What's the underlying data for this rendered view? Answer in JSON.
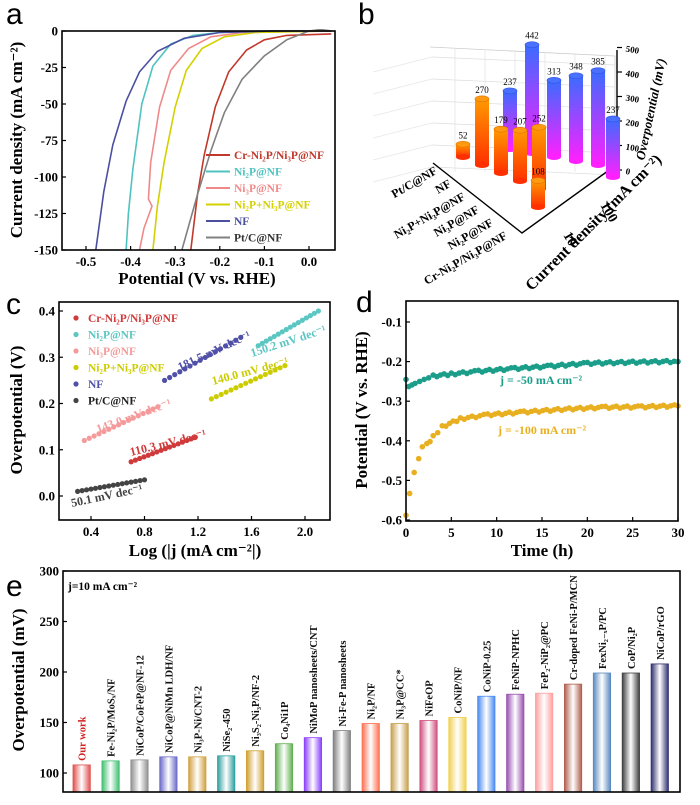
{
  "panels": {
    "a": "a",
    "b": "b",
    "c": "c",
    "d": "d",
    "e": "e"
  },
  "chart_data": [
    {
      "id": "a",
      "type": "line",
      "title": "",
      "xlabel": "Potential (V vs. RHE)",
      "ylabel": "Current density (mA cm⁻²)",
      "xlim": [
        -0.53,
        0.05
      ],
      "ylim": [
        -150,
        0
      ],
      "xticks": [
        -0.5,
        -0.4,
        -0.3,
        -0.2,
        -0.1,
        0.0
      ],
      "xtick_labels": [
        "-0.5",
        "-0.4",
        "-0.3",
        "-0.2",
        "-0.1",
        "0.0"
      ],
      "yticks": [
        0,
        -25,
        -50,
        -75,
        -100,
        -125,
        -150
      ],
      "ytick_labels": [
        "0",
        "-25",
        "-50",
        "-75",
        "-100",
        "-125",
        "-150"
      ],
      "legend_position": "bottom-right",
      "series": [
        {
          "name": "Cr-Ni₂P/Ni₃P@NF",
          "color": "#c0392b",
          "points": [
            [
              0.05,
              -2
            ],
            [
              -0.05,
              -3
            ],
            [
              -0.1,
              -6
            ],
            [
              -0.14,
              -13
            ],
            [
              -0.18,
              -28
            ],
            [
              -0.21,
              -52
            ],
            [
              -0.235,
              -85
            ],
            [
              -0.25,
              -112
            ],
            [
              -0.265,
              -150
            ]
          ]
        },
        {
          "name": "Ni₂P@NF",
          "color": "#4fc3c0",
          "points": [
            [
              0.05,
              0
            ],
            [
              -0.1,
              0
            ],
            [
              -0.2,
              -1
            ],
            [
              -0.26,
              -3
            ],
            [
              -0.31,
              -9
            ],
            [
              -0.35,
              -24
            ],
            [
              -0.375,
              -50
            ],
            [
              -0.395,
              -95
            ],
            [
              -0.405,
              -125
            ],
            [
              -0.41,
              -150
            ]
          ]
        },
        {
          "name": "Ni₃P@NF",
          "color": "#f08a8a",
          "points": [
            [
              0.05,
              0
            ],
            [
              -0.15,
              -1
            ],
            [
              -0.22,
              -4
            ],
            [
              -0.27,
              -12
            ],
            [
              -0.31,
              -27
            ],
            [
              -0.335,
              -52
            ],
            [
              -0.355,
              -90
            ],
            [
              -0.36,
              -115
            ],
            [
              -0.352,
              -120
            ],
            [
              -0.37,
              -135
            ],
            [
              -0.38,
              -150
            ]
          ]
        },
        {
          "name": "Ni₂P+Ni₃P@NF",
          "color": "#d4d000",
          "points": [
            [
              0.05,
              0
            ],
            [
              -0.12,
              -1
            ],
            [
              -0.19,
              -4
            ],
            [
              -0.24,
              -12
            ],
            [
              -0.275,
              -27
            ],
            [
              -0.3,
              -52
            ],
            [
              -0.325,
              -90
            ],
            [
              -0.34,
              -120
            ],
            [
              -0.35,
              -150
            ]
          ]
        },
        {
          "name": "NF",
          "color": "#4a4fa0",
          "points": [
            [
              0.05,
              0
            ],
            [
              -0.08,
              0
            ],
            [
              -0.2,
              -1
            ],
            [
              -0.28,
              -5
            ],
            [
              -0.34,
              -14
            ],
            [
              -0.38,
              -28
            ],
            [
              -0.41,
              -48
            ],
            [
              -0.44,
              -78
            ],
            [
              -0.46,
              -110
            ],
            [
              -0.478,
              -150
            ]
          ]
        },
        {
          "name": "Pt/C@NF",
          "color": "#808080",
          "points": [
            [
              0.05,
              2
            ],
            [
              0.0,
              0
            ],
            [
              -0.05,
              -6
            ],
            [
              -0.1,
              -17
            ],
            [
              -0.15,
              -33
            ],
            [
              -0.19,
              -56
            ],
            [
              -0.22,
              -82
            ],
            [
              -0.25,
              -112
            ],
            [
              -0.285,
              -150
            ]
          ]
        }
      ]
    },
    {
      "id": "b",
      "type": "bar",
      "subtype": "3d-bar",
      "zlabel": "Overpotential (mV)",
      "ylabel": "Current density (mA cm⁻²)",
      "zlim": [
        0,
        500
      ],
      "zticks": [
        "0",
        "100",
        "200",
        "300",
        "400",
        "500"
      ],
      "categories": [
        "Pt/C@NF",
        "NF",
        "Ni₂P+Ni₃P@NF",
        "Ni₃P@NF",
        "Ni₂P@NF",
        "Cr-Ni₂P/Ni₃P@NF"
      ],
      "current_densities": [
        "10",
        "100"
      ],
      "series": [
        {
          "name": "10",
          "values": [
            52,
            270,
            179,
            207,
            252,
            108
          ],
          "gradient": [
            "#ff9a00",
            "#ff3000"
          ]
        },
        {
          "name": "100",
          "values": [
            237,
            442,
            313,
            348,
            385,
            237
          ],
          "gradient": [
            "#3a6cff",
            "#ff20ff"
          ]
        }
      ]
    },
    {
      "id": "c",
      "type": "scatter",
      "xlabel": "Log (|j (mA cm⁻²|)",
      "ylabel": "Overpotential (V)",
      "xlim": [
        0.2,
        2.15
      ],
      "ylim": [
        -0.05,
        0.41
      ],
      "xticks": [
        0.4,
        0.8,
        1.2,
        1.6,
        2.0
      ],
      "xtick_labels": [
        "0.4",
        "0.8",
        "1.2",
        "1.6",
        "2.0"
      ],
      "yticks": [
        0.0,
        0.1,
        0.2,
        0.3,
        0.4
      ],
      "ytick_labels": [
        "0.0",
        "0.1",
        "0.2",
        "0.3",
        "0.4"
      ],
      "legend_position": "top-left",
      "series": [
        {
          "name": "Cr-Ni₂P/Ni₃P@NF",
          "color": "#d03a3a",
          "x_range": [
            0.7,
            1.18
          ],
          "y_range": [
            0.074,
            0.127
          ],
          "slope_label": "110.3 mV dec⁻¹"
        },
        {
          "name": "Ni₂P@NF",
          "color": "#5cc6c2",
          "x_range": [
            1.65,
            2.1
          ],
          "y_range": [
            0.325,
            0.4
          ],
          "slope_label": "150.2 mV dec⁻¹"
        },
        {
          "name": "Ni₃P@NF",
          "color": "#f49a9a",
          "x_range": [
            0.35,
            0.9
          ],
          "y_range": [
            0.12,
            0.193
          ],
          "slope_label": "143.0 mV dec⁻¹"
        },
        {
          "name": "Ni₂P+Ni₃P@NF",
          "color": "#cccc00",
          "x_range": [
            1.3,
            1.85
          ],
          "y_range": [
            0.21,
            0.282
          ],
          "slope_label": "140.0 mV dec⁻¹"
        },
        {
          "name": "NF",
          "color": "#5050a8",
          "x_range": [
            0.95,
            1.52
          ],
          "y_range": [
            0.25,
            0.343
          ],
          "slope_label": "181.5 mV dec⁻¹"
        },
        {
          "name": "Pt/C@NF",
          "color": "#444444",
          "x_range": [
            0.3,
            0.8
          ],
          "y_range": [
            0.01,
            0.035
          ],
          "slope_label": "50.1 mV dec⁻¹"
        }
      ]
    },
    {
      "id": "d",
      "type": "scatter",
      "xlabel": "Time (h)",
      "ylabel": "Potential (V vs. RHE)",
      "xlim": [
        0,
        30
      ],
      "ylim": [
        -0.6,
        -0.05
      ],
      "xticks": [
        0,
        5,
        10,
        15,
        20,
        25,
        30
      ],
      "xtick_labels": [
        "0",
        "5",
        "10",
        "15",
        "20",
        "25",
        "30"
      ],
      "yticks": [
        -0.1,
        -0.2,
        -0.3,
        -0.4,
        -0.5,
        -0.6
      ],
      "ytick_labels": [
        "-0.1",
        "-0.2",
        "-0.3",
        "-0.4",
        "-0.5",
        "-0.6"
      ],
      "series": [
        {
          "name": "j = -50 mA cm⁻²",
          "color": "#1a9e8a",
          "points": [
            [
              0,
              -0.245
            ],
            [
              0.3,
              -0.263
            ],
            [
              1,
              -0.255
            ],
            [
              2,
              -0.245
            ],
            [
              3,
              -0.237
            ],
            [
              5,
              -0.232
            ],
            [
              8,
              -0.225
            ],
            [
              12,
              -0.218
            ],
            [
              16,
              -0.212
            ],
            [
              20,
              -0.205
            ],
            [
              25,
              -0.202
            ],
            [
              30,
              -0.2
            ]
          ]
        },
        {
          "name": "j = -100 mA cm⁻²",
          "color": "#e8b020",
          "points": [
            [
              0,
              -0.588
            ],
            [
              0.4,
              -0.533
            ],
            [
              0.9,
              -0.48
            ],
            [
              1.4,
              -0.445
            ],
            [
              1.8,
              -0.415
            ],
            [
              2.3,
              -0.41
            ],
            [
              3,
              -0.39
            ],
            [
              4,
              -0.365
            ],
            [
              6,
              -0.345
            ],
            [
              9,
              -0.335
            ],
            [
              13,
              -0.328
            ],
            [
              18,
              -0.32
            ],
            [
              22,
              -0.316
            ],
            [
              26,
              -0.315
            ],
            [
              30,
              -0.312
            ]
          ]
        }
      ]
    },
    {
      "id": "e",
      "type": "bar",
      "annotation": "j=10 mA cm⁻²",
      "ylabel": "Overpotential (mV)",
      "ylim": [
        81,
        300
      ],
      "yticks": [
        100,
        150,
        200,
        250,
        300
      ],
      "ytick_labels": [
        "100",
        "150",
        "200",
        "250",
        "300"
      ],
      "categories": [
        "Our work",
        "Fe-Ni₂P/MoSₓ/NF",
        "NiCoP/CoFeP@NF-12",
        "NiCoP@NiMn LDH/NF",
        "Ni₃P-Ni/CNT-2",
        "NiSe₂-450",
        "Ni₃S₂-Ni₃P/NF-2",
        "Co₄Ni1P",
        "NiMoP nanosheets/CNT",
        "Ni-Fe-P nanosheets",
        "Ni₂P/NF",
        "Ni₃P@CC*",
        "NiFeOP",
        "CoNiP/NF",
        "CoNiP-0.25",
        "FeNiP-NPHC",
        "FeP₂-NiP₂@PC",
        "Cr-doped FeNi-P/MCN",
        "FexNi₂₋ₓP/PC",
        "CoP/Ni₂P",
        "NiCoP/rGO"
      ],
      "values": [
        108,
        112,
        113,
        116,
        116,
        117,
        122,
        129,
        135,
        142,
        149,
        149,
        152,
        155,
        176,
        178,
        179,
        188,
        199,
        199,
        208
      ],
      "colors": [
        "#e05050",
        "#40c070",
        "#909090",
        "#6a6ac8",
        "#d0a040",
        "#30a0a0",
        "#d0a030",
        "#60b050",
        "#8a40ff",
        "#808080",
        "#ff7050",
        "#c8a050",
        "#d05080",
        "#f0d050",
        "#4a8af0",
        "#9a50b0",
        "#ffa0a0",
        "#b06050",
        "#5a8ac0",
        "#404040",
        "#303070"
      ],
      "label_colors": [
        "#d02020"
      ]
    }
  ]
}
